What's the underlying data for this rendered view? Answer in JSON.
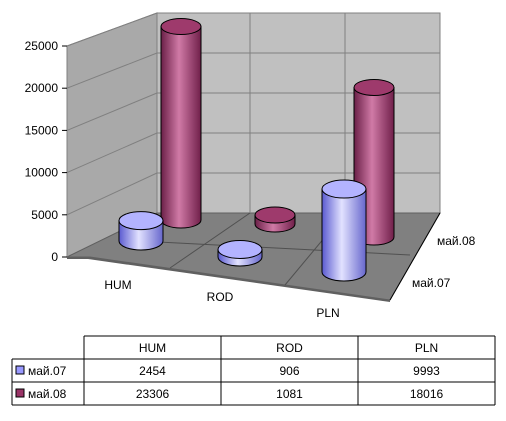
{
  "chart_data": {
    "type": "bar",
    "subtype": "3d-cylinder",
    "categories": [
      "HUM",
      "ROD",
      "PLN"
    ],
    "series": [
      {
        "name": "май.07",
        "values": [
          2454,
          906,
          9993
        ],
        "color": "#9999ff"
      },
      {
        "name": "май.08",
        "values": [
          23306,
          1081,
          18016
        ],
        "color": "#993366"
      }
    ],
    "ylim": [
      0,
      25000
    ],
    "yticks": [
      "0",
      "5000",
      "10000",
      "15000",
      "20000",
      "25000"
    ],
    "grid": true,
    "legend": "data-table",
    "table": {
      "headers": [
        "HUM",
        "ROD",
        "PLN"
      ],
      "rows": [
        {
          "label": "май.07",
          "cells": [
            "2454",
            "906",
            "9993"
          ]
        },
        {
          "label": "май.08",
          "cells": [
            "23306",
            "1081",
            "18016"
          ]
        }
      ]
    }
  }
}
